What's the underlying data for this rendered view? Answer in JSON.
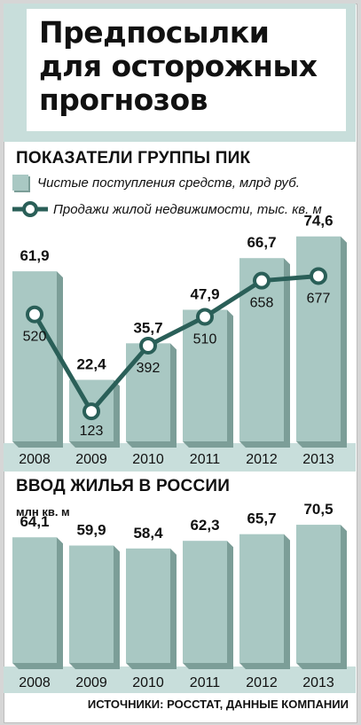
{
  "title": {
    "line1": "Предпосылки",
    "line2": "для осторожных",
    "line3": "прогнозов"
  },
  "colors": {
    "bar": "#a9c8c3",
    "bar_shadow": "#7c9e98",
    "line": "#2a5f58",
    "band": "#c8dedb"
  },
  "chart_data": [
    {
      "type": "bar",
      "title": "ПОКАЗАТЕЛИ ГРУППЫ ПИК",
      "categories": [
        "2008",
        "2009",
        "2010",
        "2011",
        "2012",
        "2013"
      ],
      "series": [
        {
          "name": "Чистые поступления средств, млрд руб.",
          "kind": "bar",
          "values": [
            61.9,
            22.4,
            35.7,
            47.9,
            66.7,
            74.6
          ],
          "labels": [
            "61,9",
            "22,4",
            "35,7",
            "47,9",
            "66,7",
            "74,6"
          ]
        },
        {
          "name": "Продажи жилой недвижимости, тыс. кв. м",
          "kind": "line",
          "values": [
            520,
            123,
            392,
            510,
            658,
            677
          ],
          "labels": [
            "520",
            "123",
            "392",
            "510",
            "658",
            "677"
          ]
        }
      ],
      "ylim": [
        0,
        80
      ],
      "ylim_line": [
        0,
        900
      ],
      "grid": false,
      "legend": "top-left"
    },
    {
      "type": "bar",
      "title": "ВВОД ЖИЛЬЯ В РОССИИ",
      "ylabel": "млн кв. м",
      "categories": [
        "2008",
        "2009",
        "2010",
        "2011",
        "2012",
        "2013"
      ],
      "values": [
        64.1,
        59.9,
        58.4,
        62.3,
        65.7,
        70.5
      ],
      "labels": [
        "64,1",
        "59,9",
        "58,4",
        "62,3",
        "65,7",
        "70,5"
      ],
      "ylim": [
        0,
        85
      ],
      "grid": false
    }
  ],
  "sources": "ИСТОЧНИКИ: РОССТАТ, ДАННЫЕ КОМПАНИИ"
}
